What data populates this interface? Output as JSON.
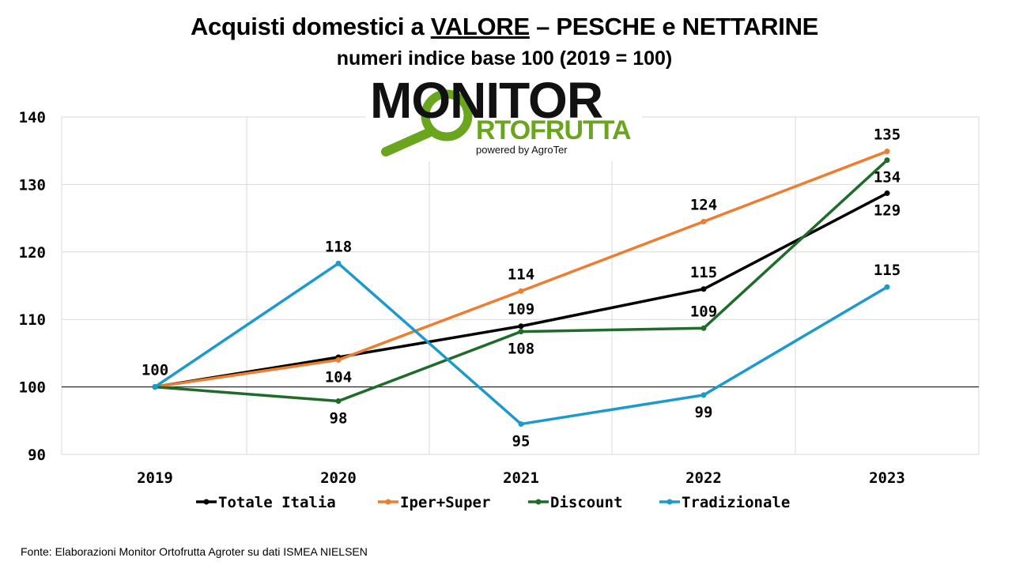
{
  "header": {
    "title_pre": "Acquisti domestici a ",
    "title_underlined": "VALORE",
    "title_post": " – PESCHE e NETTARINE",
    "subtitle": "numeri indice base 100 (2019 = 100)"
  },
  "logo": {
    "word_top": "MONITOR",
    "word_bottom": "RTOFRUTTA",
    "powered": "powered by AgroTer",
    "color_green": "#6aa51e"
  },
  "source": "Fonte: Elaborazioni Monitor Ortofrutta Agroter su dati ISMEA NIELSEN",
  "chart_data": {
    "type": "line",
    "title": "Acquisti domestici a VALORE – PESCHE e NETTARINE",
    "subtitle": "numeri indice base 100 (2019 = 100)",
    "xlabel": "",
    "ylabel": "",
    "categories": [
      "2019",
      "2020",
      "2021",
      "2022",
      "2023"
    ],
    "ylim": [
      90,
      140
    ],
    "yticks": [
      "90",
      "100",
      "110",
      "120",
      "130",
      "140"
    ],
    "baseline": 100,
    "grid": true,
    "legend": "bottom",
    "series": [
      {
        "name": "Totale Italia",
        "color": "#000000",
        "values": [
          100,
          104.4,
          109,
          114.5,
          128.7
        ],
        "labels": [
          "",
          "",
          "109",
          "115",
          "129"
        ],
        "label_pos": [
          "",
          "",
          "above",
          "above",
          "below"
        ]
      },
      {
        "name": "Iper+Super",
        "color": "#ed7d31",
        "values": [
          100,
          104,
          114.2,
          124.5,
          134.9
        ],
        "labels": [
          "100",
          "104",
          "114",
          "124",
          "135"
        ],
        "label_pos": [
          "above",
          "below",
          "above",
          "above",
          "above"
        ]
      },
      {
        "name": "Discount",
        "color": "#1e6b2a",
        "values": [
          100,
          97.9,
          108.2,
          108.7,
          133.6
        ],
        "labels": [
          "",
          "98",
          "108",
          "109",
          "134"
        ],
        "label_pos": [
          "",
          "below",
          "below",
          "above",
          "below"
        ]
      },
      {
        "name": "Tradizionale",
        "color": "#1b9acb",
        "values": [
          100,
          118.3,
          94.5,
          98.8,
          114.8
        ],
        "labels": [
          "",
          "118",
          "95",
          "99",
          "115"
        ],
        "label_pos": [
          "",
          "above",
          "below",
          "below",
          "above"
        ]
      }
    ]
  }
}
